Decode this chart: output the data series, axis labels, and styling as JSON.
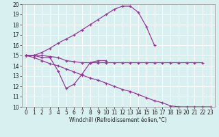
{
  "xlabel": "Windchill (Refroidissement éolien,°C)",
  "x_values": [
    0,
    1,
    2,
    3,
    4,
    5,
    6,
    7,
    8,
    9,
    10,
    11,
    12,
    13,
    14,
    15,
    16,
    17,
    18,
    19,
    20,
    21,
    22,
    23
  ],
  "line1_y": [
    15.0,
    15.0,
    15.3,
    15.7,
    16.2,
    16.6,
    17.0,
    17.5,
    18.0,
    18.5,
    19.0,
    19.5,
    19.8,
    19.8,
    19.2,
    17.8,
    16.0,
    null,
    null,
    null,
    null,
    null,
    null,
    null
  ],
  "line2_y": [
    15.0,
    15.0,
    14.8,
    14.8,
    13.5,
    11.8,
    12.2,
    13.2,
    14.3,
    14.5,
    14.5,
    null,
    null,
    null,
    null,
    null,
    null,
    null,
    null,
    null,
    null,
    null,
    null,
    null
  ],
  "line3_y": [
    15.0,
    15.0,
    15.0,
    14.9,
    14.8,
    14.5,
    14.4,
    14.3,
    14.3,
    14.3,
    14.3,
    14.3,
    14.3,
    14.3,
    14.3,
    14.3,
    14.3,
    14.3,
    14.3,
    14.3,
    14.3,
    14.3,
    14.3,
    null
  ],
  "line4_y": [
    15.0,
    14.8,
    14.5,
    14.2,
    14.0,
    13.7,
    13.4,
    13.1,
    12.8,
    12.6,
    12.3,
    12.0,
    11.7,
    11.5,
    11.2,
    10.9,
    10.6,
    10.4,
    10.1,
    10.0,
    10.0,
    10.0,
    10.0,
    10.0
  ],
  "color": "#993399",
  "bg_color": "#d8f0f0",
  "grid_color": "#ffffff",
  "ylim": [
    10,
    20
  ],
  "xlim": [
    -0.5,
    23.5
  ],
  "yticks": [
    10,
    11,
    12,
    13,
    14,
    15,
    16,
    17,
    18,
    19,
    20
  ],
  "xticks": [
    0,
    1,
    2,
    3,
    4,
    5,
    6,
    7,
    8,
    9,
    10,
    11,
    12,
    13,
    14,
    15,
    16,
    17,
    18,
    19,
    20,
    21,
    22,
    23
  ],
  "tick_fontsize": 5.5,
  "xlabel_fontsize": 5.5,
  "lw": 0.9,
  "ms": 3.0
}
